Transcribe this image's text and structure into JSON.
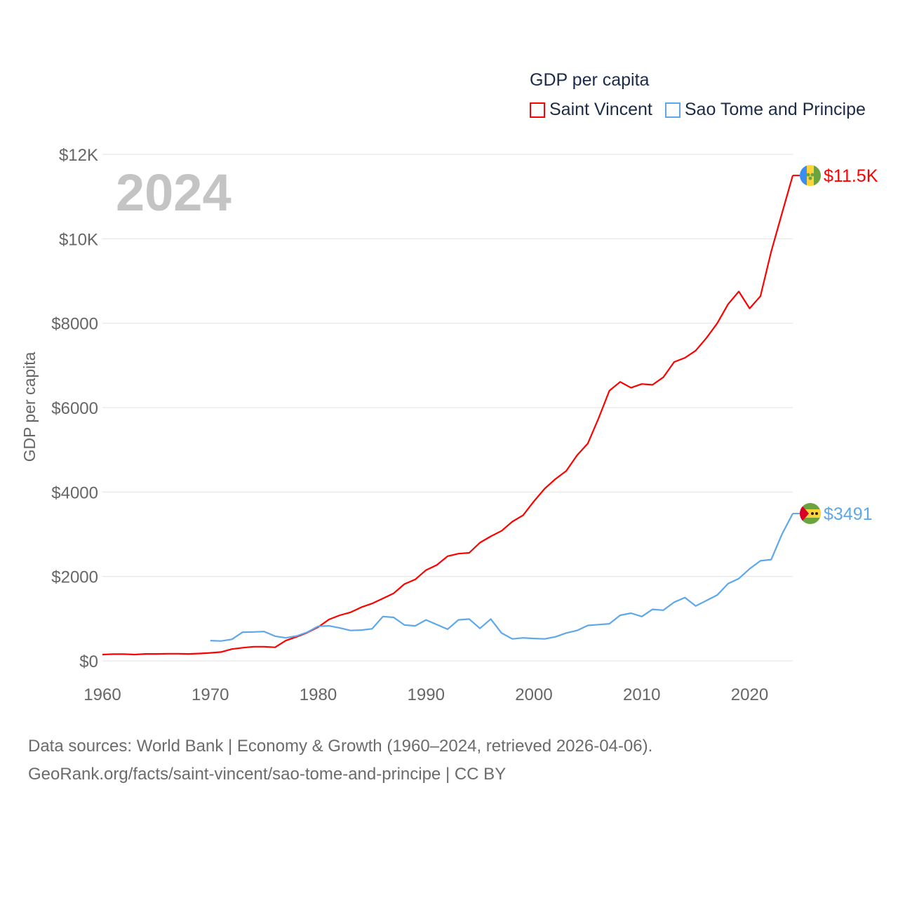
{
  "legend": {
    "title": "GDP per capita",
    "items": [
      {
        "label": "Saint Vincent",
        "color": "#ff0000"
      },
      {
        "label": "Sao Tome and Principe",
        "color": "#5ea8ea"
      }
    ]
  },
  "chart_data": {
    "type": "line",
    "title": "GDP per capita",
    "year_label": "2024",
    "xlabel": "",
    "ylabel": "GDP per capita",
    "xlim": [
      1960,
      2024
    ],
    "ylim": [
      0,
      12000
    ],
    "grid": true,
    "legend_position": "top-right",
    "x_ticks": [
      1960,
      1970,
      1980,
      1990,
      2000,
      2010,
      2020
    ],
    "x_tick_labels": [
      "1960",
      "1970",
      "1980",
      "1990",
      "2000",
      "2010",
      "2020"
    ],
    "y_ticks": [
      0,
      2000,
      4000,
      6000,
      8000,
      10000,
      12000
    ],
    "y_tick_labels": [
      "$0",
      "$2000",
      "$4000",
      "$6000",
      "$8000",
      "$10K",
      "$12K"
    ],
    "series": [
      {
        "name": "Saint Vincent",
        "color": "#ff0000",
        "end_label": "$11.5K",
        "flag": "saint-vincent-flag",
        "x_start": 1960,
        "values": [
          150,
          160,
          160,
          150,
          165,
          165,
          170,
          170,
          165,
          175,
          190,
          210,
          280,
          310,
          335,
          335,
          320,
          480,
          570,
          670,
          800,
          980,
          1080,
          1150,
          1270,
          1360,
          1480,
          1600,
          1820,
          1930,
          2150,
          2270,
          2480,
          2540,
          2560,
          2800,
          2950,
          3080,
          3300,
          3450,
          3780,
          4080,
          4310,
          4500,
          4870,
          5150,
          5750,
          6400,
          6610,
          6470,
          6560,
          6540,
          6720,
          7080,
          7180,
          7350,
          7650,
          8000,
          8450,
          8750,
          8350,
          8640,
          9700,
          10600,
          11500
        ]
      },
      {
        "name": "Sao Tome and Principe",
        "color": "#5ea8ea",
        "end_label": "$3491",
        "flag": "sao-tome-flag",
        "x_start": 1970,
        "values": [
          480,
          470,
          510,
          680,
          685,
          695,
          585,
          545,
          590,
          680,
          820,
          830,
          780,
          720,
          730,
          760,
          1050,
          1030,
          850,
          830,
          970,
          860,
          750,
          970,
          990,
          770,
          990,
          660,
          520,
          545,
          530,
          520,
          570,
          660,
          720,
          840,
          860,
          880,
          1080,
          1130,
          1050,
          1220,
          1200,
          1390,
          1500,
          1300,
          1430,
          1560,
          1830,
          1950,
          2180,
          2370,
          2400,
          3000,
          3491
        ]
      }
    ]
  },
  "source": {
    "line1": "Data sources: World Bank | Economy & Growth (1960–2024, retrieved 2026-04-06).",
    "line2": "GeoRank.org/facts/saint-vincent/sao-tome-and-principe | CC BY"
  }
}
